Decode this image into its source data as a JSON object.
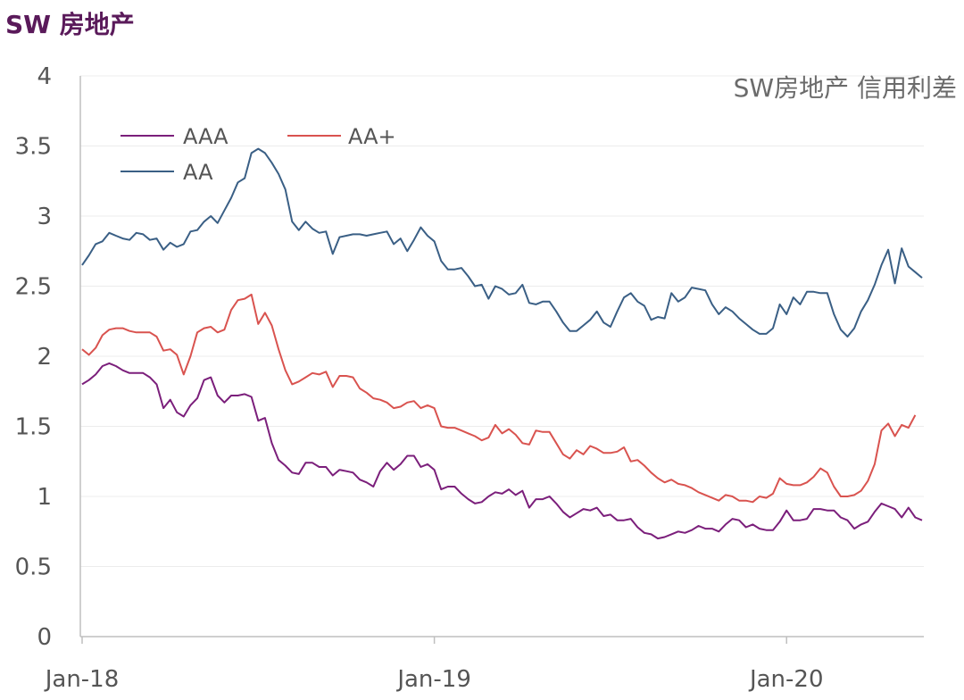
{
  "page_title": "SW 房地产",
  "chart_data": {
    "type": "line",
    "title": "SW房地产 信用利差",
    "xlabel": "",
    "ylabel": "",
    "ylim": [
      0,
      4
    ],
    "yticks": [
      "0",
      "0.5",
      "1",
      "1.5",
      "2",
      "2.5",
      "3",
      "3.5",
      "4"
    ],
    "xticks": [
      {
        "label": "Jan-18",
        "index": 0
      },
      {
        "label": "Jan-19",
        "index": 52
      },
      {
        "label": "Jan-20",
        "index": 104
      }
    ],
    "legend_position": "top-left",
    "grid": "horizontal",
    "series": [
      {
        "name": "AAA",
        "color": "#7b1f7b",
        "values": [
          1.8,
          1.83,
          1.87,
          1.93,
          1.95,
          1.93,
          1.9,
          1.88,
          1.88,
          1.88,
          1.85,
          1.8,
          1.63,
          1.69,
          1.6,
          1.57,
          1.65,
          1.7,
          1.83,
          1.85,
          1.72,
          1.67,
          1.72,
          1.72,
          1.73,
          1.71,
          1.54,
          1.56,
          1.38,
          1.26,
          1.22,
          1.17,
          1.16,
          1.24,
          1.24,
          1.21,
          1.21,
          1.15,
          1.19,
          1.18,
          1.17,
          1.12,
          1.1,
          1.07,
          1.18,
          1.24,
          1.19,
          1.23,
          1.29,
          1.29,
          1.21,
          1.23,
          1.19,
          1.05,
          1.07,
          1.07,
          1.02,
          0.98,
          0.95,
          0.96,
          1.0,
          1.03,
          1.02,
          1.05,
          1.01,
          1.04,
          0.92,
          0.98,
          0.98,
          1.0,
          0.95,
          0.89,
          0.85,
          0.88,
          0.91,
          0.9,
          0.92,
          0.86,
          0.87,
          0.83,
          0.83,
          0.84,
          0.78,
          0.74,
          0.73,
          0.7,
          0.71,
          0.73,
          0.75,
          0.74,
          0.76,
          0.79,
          0.77,
          0.77,
          0.75,
          0.8,
          0.84,
          0.83,
          0.78,
          0.8,
          0.77,
          0.76,
          0.76,
          0.82,
          0.9,
          0.83,
          0.83,
          0.84,
          0.91,
          0.91,
          0.9,
          0.9,
          0.85,
          0.83,
          0.77,
          0.8,
          0.82,
          0.89,
          0.95,
          0.93,
          0.91,
          0.85,
          0.92,
          0.85,
          0.83
        ]
      },
      {
        "name": "AA+",
        "color": "#d9534f",
        "values": [
          2.05,
          2.01,
          2.06,
          2.15,
          2.19,
          2.2,
          2.2,
          2.18,
          2.17,
          2.17,
          2.17,
          2.14,
          2.04,
          2.05,
          2.01,
          1.87,
          2.0,
          2.17,
          2.2,
          2.21,
          2.17,
          2.19,
          2.33,
          2.4,
          2.41,
          2.44,
          2.23,
          2.31,
          2.22,
          2.05,
          1.9,
          1.8,
          1.82,
          1.85,
          1.88,
          1.87,
          1.89,
          1.78,
          1.86,
          1.86,
          1.85,
          1.77,
          1.74,
          1.7,
          1.69,
          1.67,
          1.63,
          1.64,
          1.67,
          1.68,
          1.63,
          1.65,
          1.63,
          1.5,
          1.49,
          1.49,
          1.47,
          1.45,
          1.43,
          1.4,
          1.42,
          1.51,
          1.45,
          1.48,
          1.44,
          1.38,
          1.37,
          1.47,
          1.46,
          1.46,
          1.38,
          1.3,
          1.27,
          1.33,
          1.3,
          1.36,
          1.34,
          1.31,
          1.31,
          1.32,
          1.35,
          1.25,
          1.26,
          1.22,
          1.17,
          1.13,
          1.1,
          1.12,
          1.09,
          1.08,
          1.06,
          1.03,
          1.01,
          0.99,
          0.97,
          1.01,
          1.0,
          0.97,
          0.97,
          0.96,
          1.0,
          0.99,
          1.02,
          1.13,
          1.09,
          1.08,
          1.08,
          1.1,
          1.14,
          1.2,
          1.17,
          1.07,
          1.0,
          1.0,
          1.01,
          1.04,
          1.11,
          1.23,
          1.47,
          1.52,
          1.43,
          1.51,
          1.49,
          1.58
        ]
      },
      {
        "name": "AA",
        "color": "#3a5f85",
        "values": [
          2.65,
          2.72,
          2.8,
          2.82,
          2.88,
          2.86,
          2.84,
          2.83,
          2.88,
          2.87,
          2.83,
          2.84,
          2.76,
          2.81,
          2.78,
          2.8,
          2.89,
          2.9,
          2.96,
          3.0,
          2.95,
          3.04,
          3.13,
          3.24,
          3.27,
          3.45,
          3.48,
          3.45,
          3.38,
          3.3,
          3.19,
          2.96,
          2.9,
          2.96,
          2.91,
          2.88,
          2.89,
          2.73,
          2.85,
          2.86,
          2.87,
          2.87,
          2.86,
          2.87,
          2.88,
          2.89,
          2.8,
          2.84,
          2.75,
          2.83,
          2.92,
          2.86,
          2.82,
          2.68,
          2.62,
          2.62,
          2.63,
          2.57,
          2.5,
          2.51,
          2.41,
          2.5,
          2.48,
          2.44,
          2.45,
          2.51,
          2.38,
          2.37,
          2.39,
          2.39,
          2.32,
          2.24,
          2.18,
          2.18,
          2.22,
          2.26,
          2.32,
          2.24,
          2.21,
          2.32,
          2.42,
          2.45,
          2.39,
          2.36,
          2.26,
          2.28,
          2.27,
          2.45,
          2.39,
          2.42,
          2.49,
          2.48,
          2.47,
          2.37,
          2.3,
          2.35,
          2.32,
          2.27,
          2.23,
          2.19,
          2.16,
          2.16,
          2.2,
          2.37,
          2.3,
          2.42,
          2.37,
          2.46,
          2.46,
          2.45,
          2.45,
          2.3,
          2.19,
          2.14,
          2.2,
          2.32,
          2.4,
          2.51,
          2.65,
          2.76,
          2.52,
          2.77,
          2.64,
          2.6,
          2.56
        ]
      }
    ]
  }
}
